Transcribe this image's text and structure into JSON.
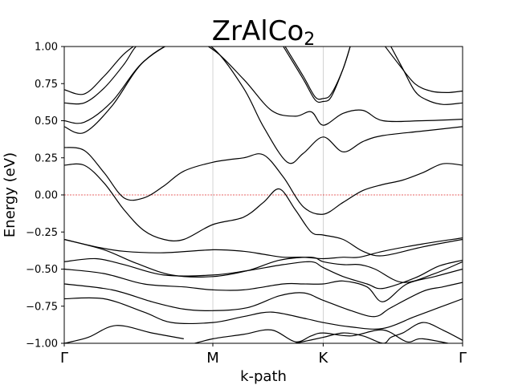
{
  "chart_data": {
    "type": "line",
    "title": "ZrAlCo",
    "title_subscript": "2",
    "xlabel": "k-path",
    "ylabel": "Energy (eV)",
    "ylim": [
      -1.0,
      1.0
    ],
    "xlim": [
      0,
      1
    ],
    "yticks": [
      -1.0,
      -0.75,
      -0.5,
      -0.25,
      0.0,
      0.25,
      0.5,
      0.75,
      1.0
    ],
    "ytick_labels": [
      "−1.00",
      "−0.75",
      "−0.50",
      "−0.25",
      "0.00",
      "0.25",
      "0.50",
      "0.75",
      "1.00"
    ],
    "kpoints": [
      {
        "label": "Γ",
        "x": 0.0
      },
      {
        "label": "M",
        "x": 0.373
      },
      {
        "label": "K",
        "x": 0.65
      },
      {
        "label": "Γ",
        "x": 1.0
      }
    ],
    "fermi_level": 0.0,
    "fermi_color": "#e03030",
    "band_color": "#000000",
    "bands": [
      {
        "x": [
          0,
          0.06,
          0.13,
          0.22,
          0.3
        ],
        "y": [
          -1.0,
          -0.96,
          -0.88,
          -0.93,
          -0.97
        ]
      },
      {
        "x": [
          0.3,
          0.373,
          0.45,
          0.52,
          0.58,
          0.62,
          0.65,
          0.72,
          0.8,
          0.86,
          0.9,
          1.0
        ],
        "y": [
          -1.02,
          -0.97,
          -0.94,
          -0.91,
          -0.99,
          -0.95,
          -0.93,
          -0.95,
          -0.91,
          -0.99,
          -0.97,
          -1.02
        ]
      },
      {
        "x": [
          0.58,
          0.65,
          0.7,
          0.75,
          0.8,
          0.82,
          0.85,
          0.9,
          0.95,
          1.0
        ],
        "y": [
          -1.0,
          -0.96,
          -0.93,
          -0.95,
          -1.0,
          -0.96,
          -0.93,
          -0.86,
          -0.91,
          -0.98
        ]
      },
      {
        "x": [
          0,
          0.1,
          0.2,
          0.27,
          0.373,
          0.45,
          0.52,
          0.6,
          0.65,
          0.72,
          0.8,
          0.88,
          0.94,
          1.0
        ],
        "y": [
          -0.7,
          -0.7,
          -0.79,
          -0.86,
          -0.86,
          -0.82,
          -0.79,
          -0.83,
          -0.86,
          -0.89,
          -0.9,
          -0.82,
          -0.76,
          -0.7
        ]
      },
      {
        "x": [
          0,
          0.12,
          0.22,
          0.3,
          0.373,
          0.46,
          0.54,
          0.6,
          0.65,
          0.72,
          0.78,
          0.82,
          0.9,
          0.95,
          1.0
        ],
        "y": [
          -0.6,
          -0.64,
          -0.72,
          -0.77,
          -0.78,
          -0.76,
          -0.68,
          -0.66,
          -0.71,
          -0.78,
          -0.82,
          -0.76,
          -0.65,
          -0.62,
          -0.59
        ]
      },
      {
        "x": [
          0,
          0.1,
          0.2,
          0.3,
          0.373,
          0.45,
          0.55,
          0.6,
          0.65,
          0.7,
          0.76,
          0.8,
          0.86,
          0.93,
          1.0
        ],
        "y": [
          -0.5,
          -0.53,
          -0.6,
          -0.62,
          -0.64,
          -0.64,
          -0.6,
          -0.6,
          -0.6,
          -0.58,
          -0.62,
          -0.72,
          -0.6,
          -0.55,
          -0.5
        ]
      },
      {
        "x": [
          0,
          0.08,
          0.15,
          0.25,
          0.373,
          0.46,
          0.55,
          0.62,
          0.65,
          0.7,
          0.76,
          0.8,
          0.88,
          0.94,
          1.0
        ],
        "y": [
          -0.45,
          -0.43,
          -0.47,
          -0.54,
          -0.54,
          -0.51,
          -0.47,
          -0.45,
          -0.49,
          -0.55,
          -0.6,
          -0.63,
          -0.56,
          -0.48,
          -0.44
        ]
      },
      {
        "x": [
          0,
          0.1,
          0.18,
          0.27,
          0.373,
          0.46,
          0.54,
          0.62,
          0.65,
          0.7,
          0.74,
          0.78,
          0.85,
          0.93,
          1.0
        ],
        "y": [
          -0.3,
          -0.37,
          -0.46,
          -0.54,
          -0.55,
          -0.51,
          -0.44,
          -0.42,
          -0.45,
          -0.47,
          -0.47,
          -0.5,
          -0.59,
          -0.53,
          -0.45
        ]
      },
      {
        "x": [
          0,
          0.08,
          0.15,
          0.25,
          0.373,
          0.45,
          0.5,
          0.55,
          0.6,
          0.65,
          0.7,
          0.74,
          0.8,
          0.9,
          1.0
        ],
        "y": [
          -0.3,
          -0.35,
          -0.38,
          -0.39,
          -0.37,
          -0.38,
          -0.4,
          -0.42,
          -0.42,
          -0.43,
          -0.42,
          -0.42,
          -0.38,
          -0.33,
          -0.29
        ]
      },
      {
        "x": [
          0,
          0.05,
          0.1,
          0.15,
          0.2,
          0.25,
          0.3,
          0.373,
          0.45,
          0.5,
          0.54,
          0.58,
          0.62,
          0.65,
          0.7,
          0.75,
          0.8,
          0.9,
          1.0
        ],
        "y": [
          0.2,
          0.2,
          0.08,
          -0.1,
          -0.24,
          -0.3,
          -0.3,
          -0.2,
          -0.15,
          -0.05,
          0.04,
          -0.1,
          -0.25,
          -0.27,
          -0.3,
          -0.38,
          -0.41,
          -0.35,
          -0.3
        ]
      },
      {
        "x": [
          0,
          0.05,
          0.1,
          0.15,
          0.2,
          0.25,
          0.3,
          0.373,
          0.45,
          0.5,
          0.55,
          0.6,
          0.65,
          0.7,
          0.75,
          0.8,
          0.85,
          0.9,
          0.95,
          1.0
        ],
        "y": [
          0.32,
          0.3,
          0.15,
          -0.02,
          -0.02,
          0.06,
          0.16,
          0.22,
          0.25,
          0.27,
          0.12,
          -0.08,
          -0.13,
          -0.05,
          0.03,
          0.07,
          0.1,
          0.15,
          0.21,
          0.2
        ]
      },
      {
        "x": [
          0,
          0.05,
          0.12,
          0.2,
          0.3,
          0.373,
          0.45,
          0.5,
          0.56,
          0.6,
          0.65,
          0.7,
          0.75,
          0.8,
          0.9,
          1.0
        ],
        "y": [
          0.46,
          0.42,
          0.6,
          0.9,
          1.05,
          0.99,
          0.72,
          0.46,
          0.22,
          0.28,
          0.39,
          0.29,
          0.36,
          0.4,
          0.43,
          0.46
        ]
      },
      {
        "x": [
          0,
          0.05,
          0.12,
          0.2,
          0.3,
          0.373,
          0.45,
          0.52,
          0.58,
          0.62,
          0.65,
          0.7,
          0.75,
          0.8,
          0.9,
          1.0
        ],
        "y": [
          0.5,
          0.49,
          0.63,
          0.9,
          1.05,
          0.98,
          0.78,
          0.57,
          0.53,
          0.56,
          0.47,
          0.55,
          0.57,
          0.5,
          0.5,
          0.51
        ]
      },
      {
        "x": [
          0,
          0.05,
          0.1,
          0.15,
          0.18,
          0.22
        ],
        "y": [
          0.62,
          0.62,
          0.72,
          0.88,
          1.0,
          1.08
        ]
      },
      {
        "x": [
          0,
          0.05,
          0.1,
          0.15,
          0.2
        ],
        "y": [
          0.71,
          0.68,
          0.8,
          0.95,
          1.05
        ]
      },
      {
        "x": [
          0.55,
          0.6,
          0.63,
          0.65,
          0.67,
          0.7,
          0.72
        ],
        "y": [
          1.0,
          0.78,
          0.64,
          0.63,
          0.66,
          0.85,
          1.02
        ]
      },
      {
        "x": [
          0.55,
          0.6,
          0.63,
          0.65,
          0.67,
          0.7,
          0.72
        ],
        "y": [
          1.02,
          0.8,
          0.66,
          0.65,
          0.68,
          0.85,
          1.02
        ]
      },
      {
        "x": [
          0.82,
          0.85,
          0.88,
          0.91,
          0.95,
          1.0
        ],
        "y": [
          1.0,
          0.85,
          0.7,
          0.64,
          0.61,
          0.62
        ]
      },
      {
        "x": [
          0.8,
          0.84,
          0.88,
          0.92,
          0.96,
          1.0
        ],
        "y": [
          1.02,
          0.88,
          0.75,
          0.7,
          0.69,
          0.7
        ]
      }
    ]
  }
}
